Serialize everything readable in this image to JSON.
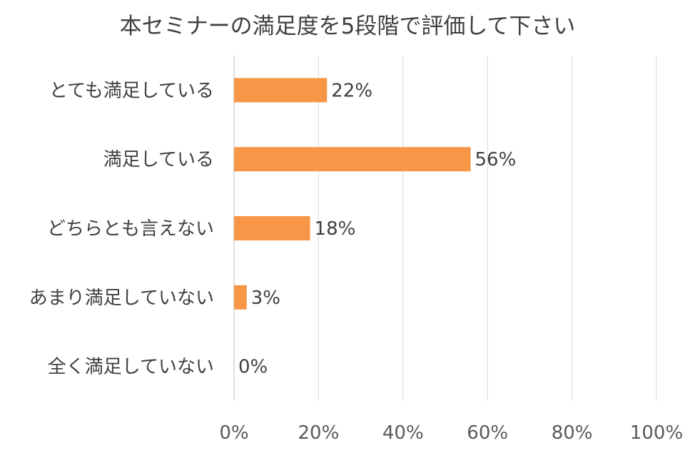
{
  "chart_data": {
    "type": "bar",
    "orientation": "horizontal",
    "title": "本セミナーの満足度を5段階で評価して下さい",
    "categories": [
      "とても満足している",
      "満足している",
      "どちらとも言えない",
      "あまり満足していない",
      "全く満足していない"
    ],
    "values": [
      22,
      56,
      18,
      3,
      0
    ],
    "data_labels": [
      "22%",
      "56%",
      "18%",
      "3%",
      "0%"
    ],
    "xlim": [
      0,
      100
    ],
    "xticks": [
      0,
      20,
      40,
      60,
      80,
      100
    ],
    "xtick_labels": [
      "0%",
      "20%",
      "40%",
      "60%",
      "80%",
      "100%"
    ],
    "bar_color": "#f79646",
    "grid": true,
    "legend": "none"
  }
}
